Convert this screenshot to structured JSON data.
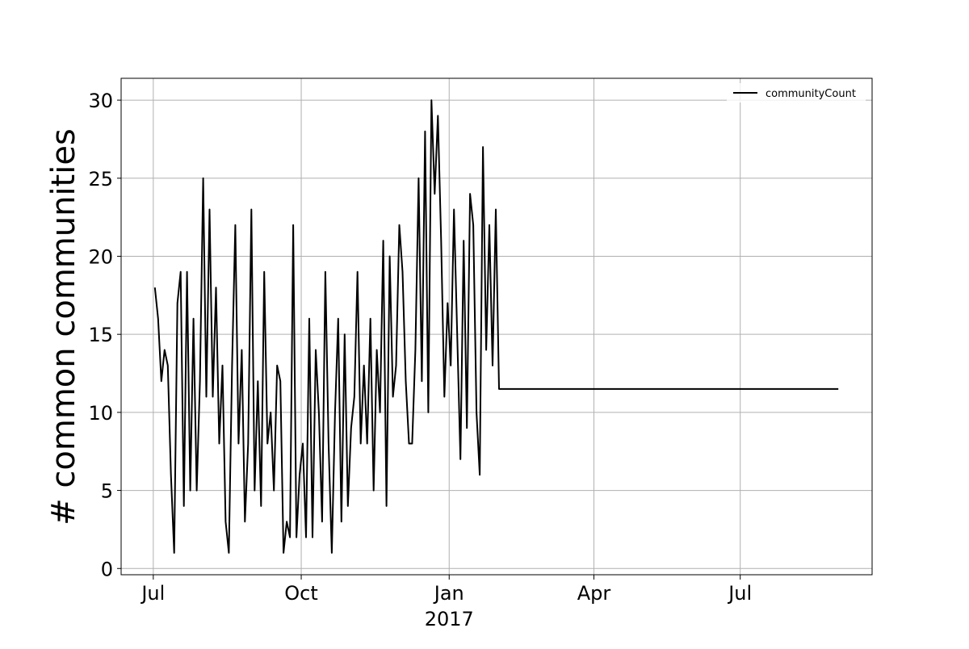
{
  "chart_data": {
    "type": "line",
    "ylabel": "# common communities",
    "x": [
      "2016-07-02",
      "2016-07-04",
      "2016-07-06",
      "2016-07-08",
      "2016-07-10",
      "2016-07-12",
      "2016-07-14",
      "2016-07-16",
      "2016-07-18",
      "2016-07-20",
      "2016-07-22",
      "2016-07-24",
      "2016-07-26",
      "2016-07-28",
      "2016-07-30",
      "2016-08-01",
      "2016-08-03",
      "2016-08-05",
      "2016-08-07",
      "2016-08-09",
      "2016-08-11",
      "2016-08-13",
      "2016-08-15",
      "2016-08-17",
      "2016-08-19",
      "2016-08-21",
      "2016-08-23",
      "2016-08-25",
      "2016-08-27",
      "2016-08-29",
      "2016-08-31",
      "2016-09-02",
      "2016-09-04",
      "2016-09-06",
      "2016-09-08",
      "2016-09-10",
      "2016-09-12",
      "2016-09-14",
      "2016-09-16",
      "2016-09-18",
      "2016-09-20",
      "2016-09-22",
      "2016-09-24",
      "2016-09-26",
      "2016-09-28",
      "2016-09-30",
      "2016-10-02",
      "2016-10-04",
      "2016-10-06",
      "2016-10-08",
      "2016-10-10",
      "2016-10-12",
      "2016-10-14",
      "2016-10-16",
      "2016-10-18",
      "2016-10-20",
      "2016-10-22",
      "2016-10-24",
      "2016-10-26",
      "2016-10-28",
      "2016-10-30",
      "2016-11-01",
      "2016-11-03",
      "2016-11-05",
      "2016-11-07",
      "2016-11-09",
      "2016-11-11",
      "2016-11-13",
      "2016-11-15",
      "2016-11-17",
      "2016-11-19",
      "2016-11-21",
      "2016-11-23",
      "2016-11-25",
      "2016-11-27",
      "2016-11-29",
      "2016-12-01",
      "2016-12-03",
      "2016-12-05",
      "2016-12-07",
      "2016-12-09",
      "2016-12-11",
      "2016-12-13",
      "2016-12-15",
      "2016-12-17",
      "2016-12-19",
      "2016-12-21",
      "2016-12-23",
      "2016-12-25",
      "2016-12-27",
      "2016-12-29",
      "2016-12-31",
      "2017-01-02",
      "2017-01-04",
      "2017-01-06",
      "2017-01-08",
      "2017-01-10",
      "2017-01-12",
      "2017-01-14",
      "2017-01-16",
      "2017-01-18",
      "2017-01-20",
      "2017-01-22",
      "2017-01-24",
      "2017-01-26",
      "2017-01-28",
      "2017-01-30",
      "2017-02-01",
      "2017-08-31"
    ],
    "series": [
      {
        "name": "communityCount",
        "color": "#000000",
        "values": [
          18,
          16,
          12,
          14,
          13,
          6,
          1,
          17,
          19,
          4,
          19,
          5,
          16,
          5,
          12,
          25,
          11,
          23,
          11,
          18,
          8,
          13,
          3,
          1,
          13,
          22,
          8,
          14,
          3,
          8,
          23,
          5,
          12,
          4,
          19,
          8,
          10,
          5,
          13,
          12,
          1,
          3,
          2,
          22,
          2,
          6,
          8,
          2,
          16,
          2,
          14,
          10,
          3,
          19,
          8,
          1,
          10,
          16,
          3,
          15,
          4,
          9,
          11,
          19,
          8,
          13,
          8,
          16,
          5,
          14,
          10,
          21,
          4,
          20,
          11,
          13,
          22,
          19,
          12,
          8,
          8,
          14,
          25,
          12,
          28,
          10,
          30,
          24,
          29,
          21,
          11,
          17,
          13,
          23,
          15,
          7,
          21,
          9,
          24,
          22,
          10,
          6,
          27,
          14,
          22,
          13,
          23,
          11.5,
          11.5
        ]
      }
    ],
    "xlim": [
      "2016-06-11",
      "2017-09-21"
    ],
    "xticks": [
      {
        "value": "2016-07-01",
        "label": "Jul"
      },
      {
        "value": "2016-10-01",
        "label": "Oct"
      },
      {
        "value": "2017-01-01",
        "label": "Jan\n2017"
      },
      {
        "value": "2017-04-01",
        "label": "Apr"
      },
      {
        "value": "2017-07-01",
        "label": "Jul"
      }
    ],
    "ylim": [
      -0.4,
      31.4
    ],
    "yticks": [
      0,
      5,
      10,
      15,
      20,
      25,
      30
    ],
    "grid": true,
    "legend": "upper right"
  }
}
